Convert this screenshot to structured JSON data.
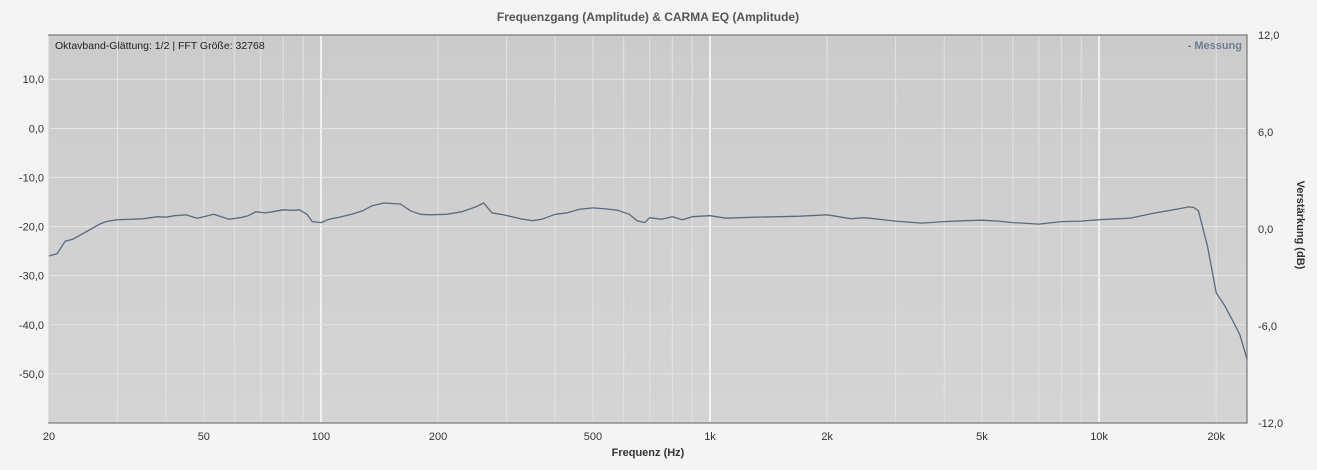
{
  "chart_data": {
    "type": "line",
    "title": "Frequenzgang (Amplitude) & CARMA EQ (Amplitude)",
    "info_text": "Oktavband-Glättung: 1/2 | FFT Größe: 32768",
    "xlabel": "Frequenz (Hz)",
    "ylabel_right": "Verstärkung (dB)",
    "x_scale": "log",
    "xlim": [
      20,
      24000
    ],
    "ylim_left": [
      -60,
      19
    ],
    "ylim_right": [
      -12,
      12
    ],
    "grid": true,
    "legend_position": "top-right",
    "x_tick_values": [
      20,
      50,
      100,
      200,
      500,
      1000,
      2000,
      5000,
      10000,
      20000
    ],
    "x_tick_labels": [
      "20",
      "50",
      "100",
      "200",
      "500",
      "1k",
      "2k",
      "5k",
      "10k",
      "20k"
    ],
    "y_left_ticks": [
      10,
      0,
      -10,
      -20,
      -30,
      -40,
      -50
    ],
    "y_left_tick_labels": [
      "10,0",
      "0,0",
      "-10,0",
      "-20,0",
      "-30,0",
      "-40,0",
      "-50,0"
    ],
    "y_right_ticks": [
      12,
      6,
      0,
      -6,
      -12
    ],
    "y_right_tick_labels": [
      "12,0",
      "6,0",
      "0,0",
      "-6,0",
      "-12,0"
    ],
    "series": [
      {
        "name": "- Messung",
        "color": "#5a6a80",
        "x": [
          20,
          21,
          22,
          23,
          25,
          27,
          28,
          30,
          33,
          35,
          38,
          40,
          42,
          45,
          48,
          50,
          53,
          55,
          58,
          62,
          65,
          68,
          72,
          75,
          80,
          85,
          88,
          92,
          95,
          100,
          105,
          110,
          120,
          128,
          135,
          145,
          160,
          170,
          180,
          190,
          210,
          230,
          250,
          262,
          275,
          290,
          310,
          330,
          350,
          370,
          400,
          430,
          460,
          500,
          540,
          580,
          620,
          650,
          680,
          700,
          750,
          800,
          850,
          900,
          1000,
          1100,
          1200,
          1300,
          1500,
          1700,
          2000,
          2300,
          2500,
          3000,
          3500,
          4000,
          4500,
          5000,
          5500,
          6000,
          7000,
          8000,
          9000,
          10000,
          12000,
          14000,
          16000,
          17000,
          17500,
          18000,
          19000,
          20000,
          21000,
          22000,
          23000,
          24000
        ],
        "y": [
          -26.0,
          -25.5,
          -23.0,
          -22.6,
          -21.0,
          -19.5,
          -19.0,
          -18.6,
          -18.5,
          -18.4,
          -18.0,
          -18.1,
          -17.8,
          -17.6,
          -18.3,
          -18.0,
          -17.5,
          -17.9,
          -18.5,
          -18.2,
          -17.8,
          -17.0,
          -17.2,
          -17.0,
          -16.6,
          -16.7,
          -16.6,
          -17.5,
          -19.0,
          -19.2,
          -18.5,
          -18.2,
          -17.5,
          -16.8,
          -15.8,
          -15.2,
          -15.4,
          -16.8,
          -17.5,
          -17.6,
          -17.5,
          -17.0,
          -16.0,
          -15.2,
          -17.2,
          -17.5,
          -18.0,
          -18.5,
          -18.8,
          -18.5,
          -17.5,
          -17.2,
          -16.5,
          -16.2,
          -16.4,
          -16.7,
          -17.5,
          -18.8,
          -19.2,
          -18.2,
          -18.5,
          -18.0,
          -18.6,
          -18.0,
          -17.8,
          -18.3,
          -18.2,
          -18.1,
          -18.0,
          -17.9,
          -17.6,
          -18.4,
          -18.2,
          -18.9,
          -19.3,
          -19.0,
          -18.8,
          -18.7,
          -18.9,
          -19.2,
          -19.5,
          -19.0,
          -18.9,
          -18.6,
          -18.3,
          -17.2,
          -16.4,
          -16.0,
          -16.1,
          -16.8,
          -24.0,
          -33.5,
          -36.0,
          -39.0,
          -42.0,
          -47.0
        ]
      }
    ]
  }
}
